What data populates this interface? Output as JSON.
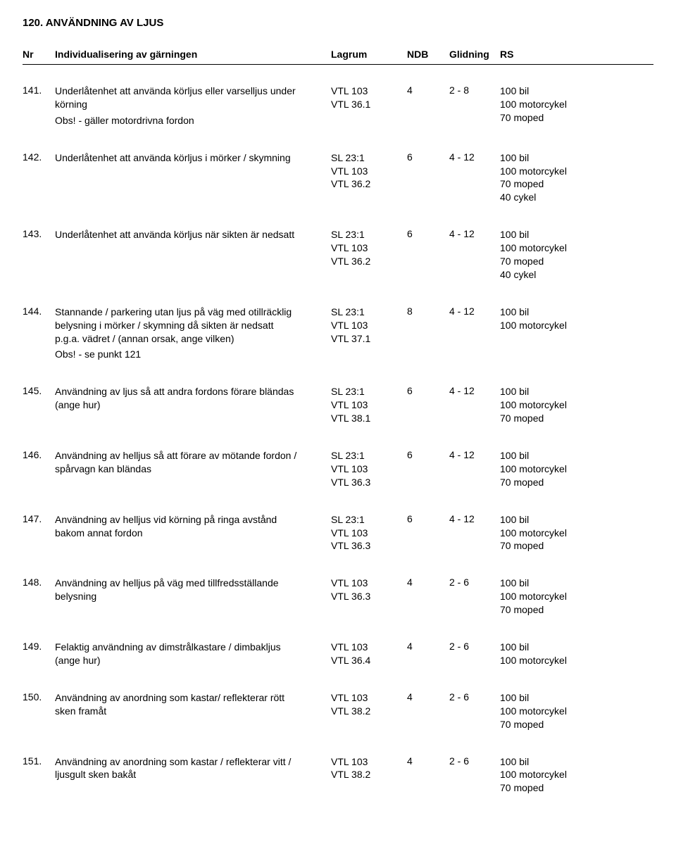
{
  "section_title": "120. ANVÄNDNING AV LJUS",
  "headers": {
    "nr": "Nr",
    "desc": "Individualisering av gärningen",
    "lagrum": "Lagrum",
    "ndb": "NDB",
    "glidning": "Glidning",
    "rs": "RS"
  },
  "rows": [
    {
      "nr": "141.",
      "desc": [
        "Underlåtenhet att använda körljus eller varselljus under",
        "körning"
      ],
      "obs": "Obs! - gäller motordrivna fordon",
      "lagrum": [
        "VTL 103",
        "VTL 36.1"
      ],
      "ndb": "4",
      "glidning": "2 - 8",
      "rs": [
        "100 bil",
        "100 motorcykel",
        "70 moped"
      ]
    },
    {
      "nr": "142.",
      "desc": [
        "Underlåtenhet att använda körljus i mörker / skymning"
      ],
      "obs": "",
      "lagrum": [
        "SL 23:1",
        "VTL 103",
        "VTL 36.2"
      ],
      "ndb": "6",
      "glidning": "4 - 12",
      "rs": [
        "100 bil",
        "100 motorcykel",
        "70 moped",
        "40 cykel"
      ]
    },
    {
      "nr": "143.",
      "desc": [
        "Underlåtenhet att använda körljus när sikten är nedsatt"
      ],
      "obs": "",
      "lagrum": [
        "SL 23:1",
        "VTL 103",
        "VTL 36.2"
      ],
      "ndb": "6",
      "glidning": "4 - 12",
      "rs": [
        "100 bil",
        "100 motorcykel",
        "70 moped",
        "40 cykel"
      ]
    },
    {
      "nr": "144.",
      "desc": [
        "Stannande / parkering utan ljus på väg med otillräcklig",
        "belysning i mörker / skymning då sikten är nedsatt",
        "p.g.a. vädret / (annan orsak, ange vilken)"
      ],
      "obs": "Obs! - se punkt 121",
      "lagrum": [
        "SL 23:1",
        "VTL 103",
        "VTL 37.1"
      ],
      "ndb": "8",
      "glidning": "4 - 12",
      "rs": [
        "100 bil",
        "100 motorcykel"
      ]
    },
    {
      "nr": "145.",
      "desc": [
        "Användning av ljus så att andra fordons förare bländas",
        "(ange hur)"
      ],
      "obs": "",
      "lagrum": [
        "SL 23:1",
        "VTL 103",
        "VTL 38.1"
      ],
      "ndb": "6",
      "glidning": "4 - 12",
      "rs": [
        "100 bil",
        "100 motorcykel",
        "70 moped"
      ]
    },
    {
      "nr": "146.",
      "desc": [
        "Användning av helljus så att förare av mötande fordon /",
        "spårvagn kan bländas"
      ],
      "obs": "",
      "lagrum": [
        "SL 23:1",
        "VTL 103",
        "VTL 36.3"
      ],
      "ndb": "6",
      "glidning": "4 - 12",
      "rs": [
        "100 bil",
        "100 motorcykel",
        "70 moped"
      ]
    },
    {
      "nr": "147.",
      "desc": [
        "Användning av helljus vid körning på ringa avstånd",
        "bakom annat fordon"
      ],
      "obs": "",
      "lagrum": [
        "SL 23:1",
        "VTL 103",
        "VTL 36.3"
      ],
      "ndb": "6",
      "glidning": "4 - 12",
      "rs": [
        "100 bil",
        "100 motorcykel",
        "70 moped"
      ]
    },
    {
      "nr": "148.",
      "desc": [
        "Användning av helljus på väg med tillfredsställande",
        "belysning"
      ],
      "obs": "",
      "lagrum": [
        "VTL 103",
        "VTL 36.3"
      ],
      "ndb": "4",
      "glidning": "2 - 6",
      "rs": [
        "100 bil",
        "100 motorcykel",
        "70 moped"
      ]
    },
    {
      "nr": "149.",
      "desc": [
        "Felaktig användning av dimstrålkastare / dimbakljus",
        "(ange hur)"
      ],
      "obs": "",
      "lagrum": [
        "VTL 103",
        "VTL 36.4"
      ],
      "ndb": "4",
      "glidning": "2 - 6",
      "rs": [
        "100 bil",
        "100 motorcykel"
      ]
    },
    {
      "nr": "150.",
      "desc": [
        "Användning av anordning som kastar/ reflekterar rött",
        "sken framåt"
      ],
      "obs": "",
      "lagrum": [
        "VTL 103",
        "VTL 38.2"
      ],
      "ndb": "4",
      "glidning": "2 - 6",
      "rs": [
        "100 bil",
        "100 motorcykel",
        "70 moped"
      ]
    },
    {
      "nr": "151.",
      "desc": [
        "Användning av anordning som kastar / reflekterar vitt /",
        "ljusgult sken bakåt"
      ],
      "obs": "",
      "lagrum": [
        "VTL 103",
        "VTL 38.2"
      ],
      "ndb": "4",
      "glidning": "2 - 6",
      "rs": [
        "100 bil",
        "100 motorcykel",
        "70 moped"
      ]
    }
  ]
}
